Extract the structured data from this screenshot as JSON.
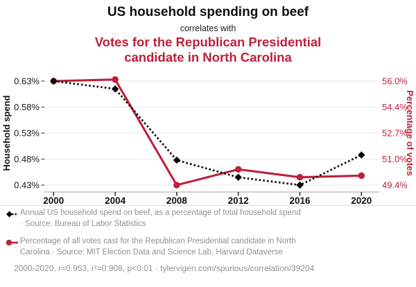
{
  "header": {
    "title_black": "US household spending on beef",
    "connector": "correlates with",
    "title_red_lines": [
      "Votes for the Republican Presidential",
      "candidate in North Carolina"
    ]
  },
  "chart_data": {
    "type": "line",
    "x": [
      2000,
      2004,
      2008,
      2012,
      2016,
      2020
    ],
    "x_tick_labels": [
      "2000",
      "2004",
      "2008",
      "2012",
      "2016",
      "2020"
    ],
    "series": [
      {
        "name": "Annual US household spend on beef, as a percentage of total household spend",
        "axis": "left",
        "color": "#0a0a0a",
        "line_style": "dashed",
        "marker": "diamond",
        "values": [
          0.63,
          0.615,
          0.478,
          0.445,
          0.43,
          0.488
        ]
      },
      {
        "name": "Percentage of all votes cast for the Republican Presidential candidate in North Carolina",
        "axis": "right",
        "color": "#be213b",
        "line_style": "solid",
        "marker": "circle",
        "values": [
          56.0,
          56.1,
          49.4,
          50.4,
          49.9,
          50.0
        ]
      }
    ],
    "left_axis": {
      "label": "Household spend",
      "tick_labels": [
        "0.63%",
        "0.58%",
        "0.53%",
        "0.48%",
        "0.43%"
      ],
      "min": 0.43,
      "max": 0.63
    },
    "right_axis": {
      "label": "Percentage of votes",
      "tick_labels": [
        "56.0%",
        "54.4%",
        "52.7%",
        "51.0%",
        "49.4%"
      ],
      "min": 49.4,
      "max": 56.0
    },
    "grid": "horizontal",
    "legend_position": "bottom"
  },
  "legend": {
    "entries": [
      {
        "lines": [
          "Annual US household spend on beef, as a percentage of total household spend",
          "· Source: Bureau of Labor Statistics"
        ]
      },
      {
        "lines": [
          "Percentage of all votes cast for the Republican Presidential candidate in North",
          "Carolina · Source: MIT Election Data and Science Lab, Harvard Dataverse"
        ]
      }
    ],
    "footer": "2000-2020, r=0.953, r²=0.908, p<0.01 · tylervigen.com/spurious/correlation/39204"
  },
  "colors": {
    "accent_red": "#be213b",
    "series_black": "#0a0a0a",
    "legend_gray": "#919191",
    "gridline": "#ececec",
    "axis_line": "#b3b3b3"
  }
}
